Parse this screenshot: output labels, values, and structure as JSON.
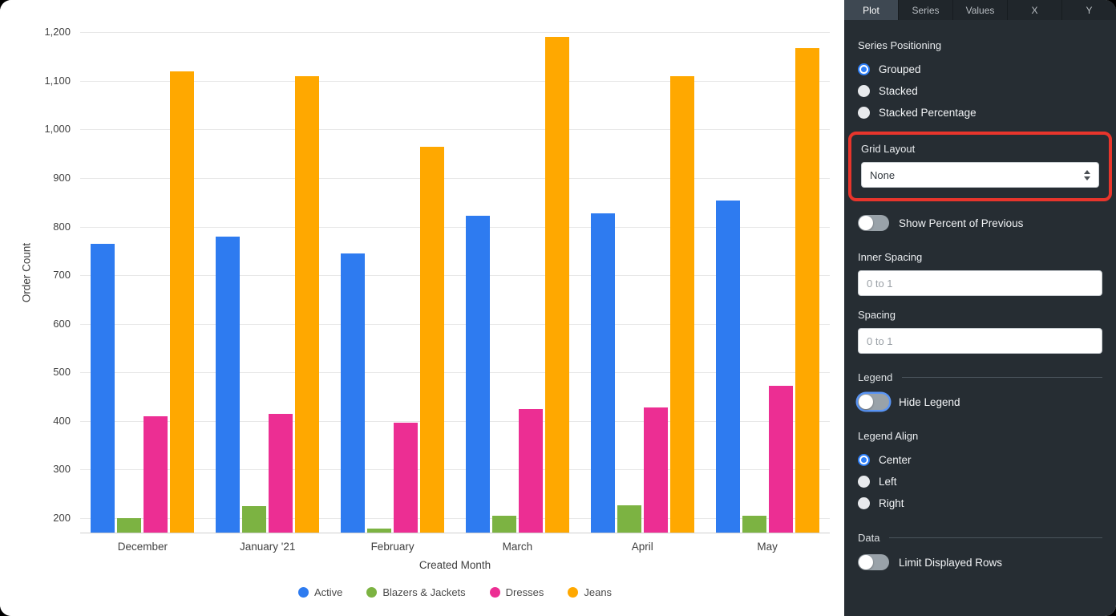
{
  "panel": {
    "tabs": [
      "Plot",
      "Series",
      "Values",
      "X",
      "Y"
    ],
    "active_tab": "Plot",
    "series_positioning": {
      "label": "Series Positioning",
      "options": [
        {
          "label": "Grouped",
          "selected": true
        },
        {
          "label": "Stacked",
          "selected": false
        },
        {
          "label": "Stacked Percentage",
          "selected": false
        }
      ]
    },
    "grid_layout": {
      "label": "Grid Layout",
      "value": "None"
    },
    "show_percent_previous": {
      "label": "Show Percent of Previous",
      "on": false
    },
    "inner_spacing": {
      "label": "Inner Spacing",
      "placeholder": "0 to 1",
      "value": ""
    },
    "spacing": {
      "label": "Spacing",
      "placeholder": "0 to 1",
      "value": ""
    },
    "legend_section": {
      "label": "Legend"
    },
    "hide_legend": {
      "label": "Hide Legend",
      "on": false
    },
    "legend_align": {
      "label": "Legend Align",
      "options": [
        {
          "label": "Center",
          "selected": true
        },
        {
          "label": "Left",
          "selected": false
        },
        {
          "label": "Right",
          "selected": false
        }
      ]
    },
    "data_section": {
      "label": "Data"
    },
    "limit_displayed_rows": {
      "label": "Limit Displayed Rows",
      "on": false
    },
    "annotation_color": "#e8352c",
    "accent_color": "#2d7ff9"
  },
  "chart_data": {
    "type": "bar",
    "title": "",
    "xlabel": "Created Month",
    "ylabel": "Order Count",
    "categories": [
      "December",
      "January '21",
      "February",
      "March",
      "April",
      "May"
    ],
    "series": [
      {
        "name": "Active",
        "color": "#2e7bf0",
        "values": [
          765,
          780,
          745,
          822,
          828,
          853
        ]
      },
      {
        "name": "Blazers & Jackets",
        "color": "#7cb342",
        "values": [
          200,
          224,
          178,
          205,
          227,
          205
        ]
      },
      {
        "name": "Dresses",
        "color": "#ec2e93",
        "values": [
          410,
          415,
          396,
          425,
          427,
          473
        ]
      },
      {
        "name": "Jeans",
        "color": "#ffa800",
        "values": [
          1120,
          1110,
          965,
          1190,
          1110,
          1168
        ]
      }
    ],
    "y_ticks": [
      200,
      300,
      400,
      500,
      600,
      700,
      800,
      900,
      1000,
      1100,
      1200
    ],
    "ylim": [
      170,
      1240
    ],
    "grid": "horizontal",
    "legend_position": "bottom-center"
  }
}
